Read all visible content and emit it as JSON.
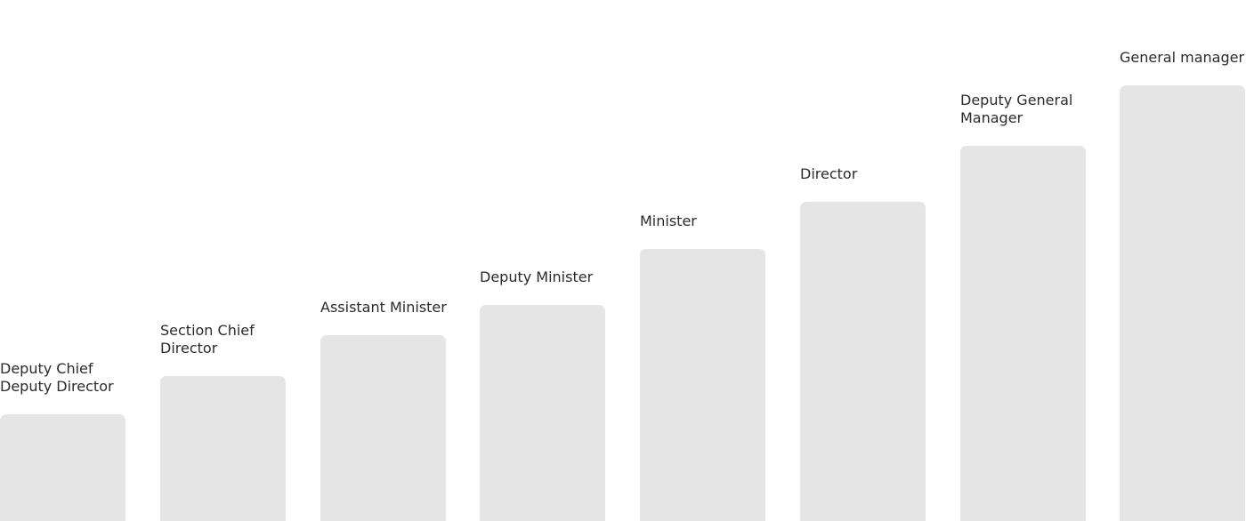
{
  "levels": [
    {
      "label": "Deputy Chief\nDeputy Director"
    },
    {
      "label": "Section Chief\nDirector"
    },
    {
      "label": "Assistant Minister"
    },
    {
      "label": "Deputy Minister"
    },
    {
      "label": "Minister"
    },
    {
      "label": "Director"
    },
    {
      "label": "Deputy General\nManager"
    },
    {
      "label": "General manager"
    }
  ],
  "colors": {
    "bar": "#e5e5e5",
    "text": "#2b2b2b"
  }
}
